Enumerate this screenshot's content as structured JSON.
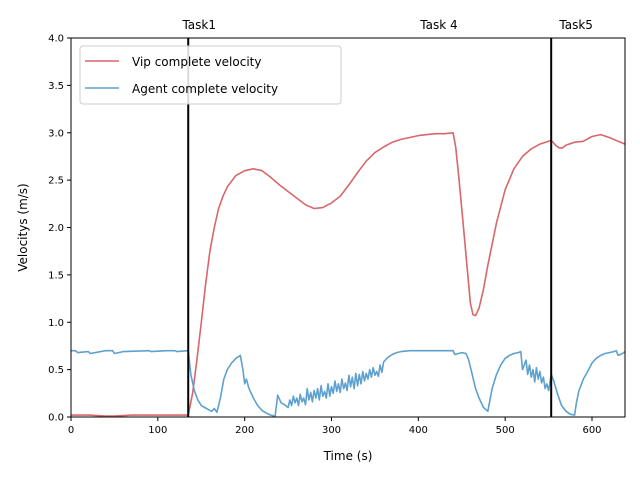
{
  "chart_data": {
    "type": "line",
    "xlabel": "Time (s)",
    "ylabel": "Velocitys (m/s)",
    "xlim": [
      0,
      638
    ],
    "ylim": [
      0,
      4.0
    ],
    "x_ticks": [
      0,
      100,
      200,
      300,
      400,
      500,
      600
    ],
    "y_ticks": [
      0.0,
      0.5,
      1.0,
      1.5,
      2.0,
      2.5,
      3.0,
      3.5,
      4.0
    ],
    "x_tick_labels": [
      "0",
      "100",
      "200",
      "300",
      "400",
      "500",
      "600"
    ],
    "y_tick_labels": [
      "0.0",
      "0.5",
      "1.0",
      "1.5",
      "2.0",
      "2.5",
      "3.0",
      "3.5",
      "4.0"
    ],
    "grid": false,
    "legend_position": "top-left",
    "task_markers": [
      {
        "x": 135,
        "label": "Task1"
      },
      {
        "x": 553,
        "label": "Task5"
      }
    ],
    "annotations": [
      {
        "x": 403,
        "label": "Task 4"
      }
    ],
    "series": [
      {
        "name": "Vip complete velocity",
        "color": "#d9666a",
        "x": [
          0,
          20,
          40,
          50,
          70,
          100,
          120,
          135,
          140,
          145,
          150,
          155,
          160,
          165,
          170,
          175,
          180,
          190,
          200,
          210,
          220,
          230,
          240,
          250,
          260,
          270,
          280,
          290,
          300,
          310,
          320,
          330,
          340,
          350,
          360,
          370,
          380,
          390,
          400,
          410,
          420,
          430,
          440,
          443,
          447,
          452,
          457,
          460,
          463,
          466,
          470,
          475,
          480,
          490,
          500,
          510,
          520,
          530,
          540,
          550,
          553,
          558,
          562,
          566,
          570,
          580,
          590,
          600,
          610,
          620,
          630,
          638
        ],
        "y": [
          0.02,
          0.02,
          0.01,
          0.01,
          0.02,
          0.02,
          0.02,
          0.02,
          0.25,
          0.6,
          1.0,
          1.4,
          1.75,
          2.0,
          2.2,
          2.33,
          2.43,
          2.55,
          2.6,
          2.62,
          2.6,
          2.53,
          2.45,
          2.38,
          2.31,
          2.24,
          2.2,
          2.21,
          2.26,
          2.33,
          2.45,
          2.58,
          2.7,
          2.79,
          2.85,
          2.9,
          2.93,
          2.95,
          2.97,
          2.98,
          2.99,
          2.99,
          3.0,
          2.85,
          2.5,
          2.0,
          1.5,
          1.2,
          1.08,
          1.07,
          1.15,
          1.35,
          1.6,
          2.05,
          2.4,
          2.62,
          2.75,
          2.83,
          2.88,
          2.91,
          2.92,
          2.87,
          2.84,
          2.84,
          2.87,
          2.9,
          2.91,
          2.96,
          2.98,
          2.95,
          2.91,
          2.88
        ]
      },
      {
        "name": "Agent complete velocity",
        "color": "#5ea1cf",
        "x": [
          0,
          5,
          8,
          20,
          22,
          40,
          48,
          50,
          60,
          90,
          92,
          110,
          120,
          122,
          135,
          138,
          142,
          146,
          150,
          154,
          158,
          162,
          165,
          168,
          172,
          176,
          180,
          185,
          190,
          195,
          198,
          200,
          202,
          205,
          210,
          215,
          220,
          225,
          230,
          235,
          238,
          242,
          246,
          250,
          252,
          254,
          256,
          258,
          260,
          262,
          264,
          266,
          268,
          270,
          272,
          274,
          276,
          278,
          280,
          282,
          284,
          286,
          288,
          290,
          292,
          294,
          296,
          298,
          300,
          302,
          304,
          306,
          308,
          310,
          312,
          314,
          316,
          318,
          320,
          322,
          324,
          326,
          328,
          330,
          332,
          334,
          336,
          338,
          340,
          342,
          344,
          346,
          348,
          350,
          352,
          354,
          356,
          358,
          360,
          365,
          370,
          375,
          380,
          390,
          400,
          420,
          440,
          442,
          450,
          455,
          458,
          462,
          466,
          470,
          475,
          480,
          485,
          490,
          495,
          500,
          505,
          510,
          515,
          518,
          520,
          522,
          524,
          526,
          528,
          530,
          532,
          534,
          536,
          538,
          540,
          542,
          544,
          546,
          548,
          550,
          553,
          556,
          560,
          565,
          570,
          575,
          580,
          582,
          585,
          588,
          590,
          595,
          600,
          605,
          610,
          615,
          620,
          625,
          628,
          630,
          635,
          638
        ],
        "y": [
          0.7,
          0.7,
          0.68,
          0.69,
          0.67,
          0.7,
          0.7,
          0.67,
          0.69,
          0.7,
          0.69,
          0.7,
          0.7,
          0.69,
          0.7,
          0.45,
          0.28,
          0.18,
          0.12,
          0.1,
          0.08,
          0.06,
          0.09,
          0.05,
          0.2,
          0.4,
          0.5,
          0.57,
          0.62,
          0.65,
          0.5,
          0.35,
          0.4,
          0.3,
          0.2,
          0.12,
          0.07,
          0.04,
          0.02,
          0.01,
          0.23,
          0.15,
          0.13,
          0.1,
          0.18,
          0.12,
          0.22,
          0.15,
          0.2,
          0.12,
          0.24,
          0.16,
          0.2,
          0.13,
          0.3,
          0.18,
          0.26,
          0.16,
          0.28,
          0.2,
          0.3,
          0.18,
          0.33,
          0.22,
          0.27,
          0.2,
          0.35,
          0.22,
          0.32,
          0.25,
          0.38,
          0.27,
          0.35,
          0.26,
          0.4,
          0.3,
          0.36,
          0.28,
          0.44,
          0.32,
          0.42,
          0.3,
          0.46,
          0.33,
          0.45,
          0.35,
          0.48,
          0.38,
          0.46,
          0.4,
          0.5,
          0.42,
          0.52,
          0.44,
          0.48,
          0.43,
          0.55,
          0.47,
          0.58,
          0.63,
          0.66,
          0.68,
          0.69,
          0.7,
          0.7,
          0.7,
          0.7,
          0.66,
          0.68,
          0.67,
          0.6,
          0.45,
          0.3,
          0.2,
          0.1,
          0.06,
          0.3,
          0.45,
          0.55,
          0.62,
          0.65,
          0.67,
          0.68,
          0.69,
          0.5,
          0.55,
          0.6,
          0.45,
          0.55,
          0.42,
          0.5,
          0.37,
          0.52,
          0.4,
          0.48,
          0.36,
          0.42,
          0.3,
          0.35,
          0.28,
          0.45,
          0.38,
          0.25,
          0.12,
          0.06,
          0.03,
          0.02,
          0.15,
          0.28,
          0.35,
          0.4,
          0.48,
          0.57,
          0.62,
          0.65,
          0.67,
          0.68,
          0.69,
          0.7,
          0.65,
          0.67,
          0.69
        ]
      }
    ]
  }
}
